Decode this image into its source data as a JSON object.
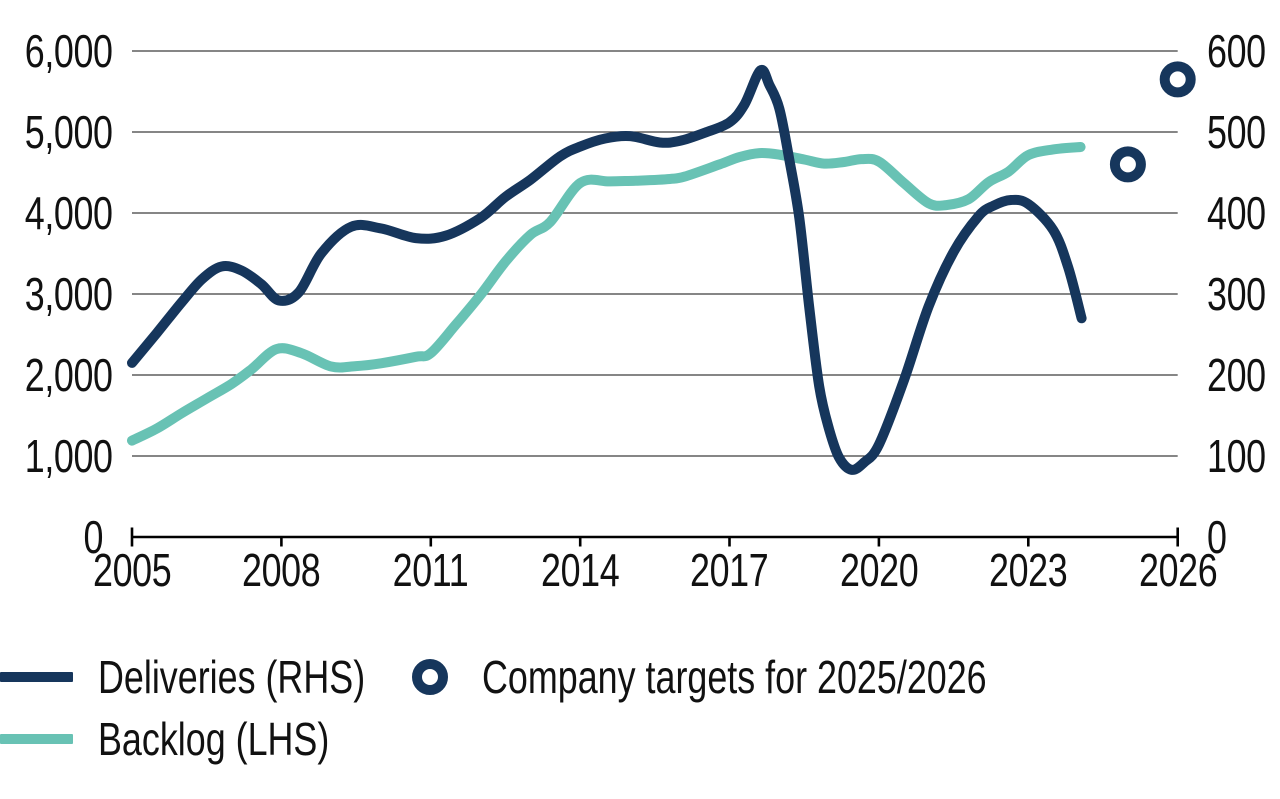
{
  "background": "#ffffff",
  "colors": {
    "deliveries": "#16365c",
    "backlog": "#68c2b4",
    "gridline": "#3f3f3f",
    "axis": "#000000",
    "text": "#111111"
  },
  "chart_data": {
    "type": "line",
    "x_axis": {
      "range": [
        2005,
        2026
      ],
      "ticks": [
        {
          "label": "2005",
          "value": 2005
        },
        {
          "label": "2008",
          "value": 2008
        },
        {
          "label": "2011",
          "value": 2011
        },
        {
          "label": "2014",
          "value": 2014
        },
        {
          "label": "2017",
          "value": 2017
        },
        {
          "label": "2020",
          "value": 2020
        },
        {
          "label": "2023",
          "value": 2023
        },
        {
          "label": "2026",
          "value": 2026
        }
      ]
    },
    "y_axis_left": {
      "range": [
        0,
        6000
      ],
      "ticks": [
        {
          "label": "6,000",
          "value": 6000
        },
        {
          "label": "5,000",
          "value": 5000
        },
        {
          "label": "4,000",
          "value": 4000
        },
        {
          "label": "3,000",
          "value": 3000
        },
        {
          "label": "2,000",
          "value": 2000
        },
        {
          "label": "1,000",
          "value": 1000
        },
        {
          "label": "0",
          "value": 0
        }
      ]
    },
    "y_axis_right": {
      "range": [
        0,
        600
      ],
      "ticks": [
        {
          "label": "600",
          "value": 600
        },
        {
          "label": "500",
          "value": 500
        },
        {
          "label": "400",
          "value": 400
        },
        {
          "label": "300",
          "value": 300
        },
        {
          "label": "200",
          "value": 200
        },
        {
          "label": "100",
          "value": 100
        },
        {
          "label": "0",
          "value": 0
        }
      ]
    },
    "grid": true,
    "legend_position": "bottom-left",
    "series": [
      {
        "name": "Deliveries (RHS)",
        "axis": "right",
        "color": "#16365c",
        "points": [
          [
            2005,
            215
          ],
          [
            2005.5,
            252
          ],
          [
            2006,
            290
          ],
          [
            2006.4,
            318
          ],
          [
            2006.8,
            334
          ],
          [
            2007.2,
            329
          ],
          [
            2007.6,
            312
          ],
          [
            2007.95,
            292
          ],
          [
            2008.35,
            302
          ],
          [
            2008.8,
            350
          ],
          [
            2009.4,
            383
          ],
          [
            2010,
            381
          ],
          [
            2010.7,
            369
          ],
          [
            2011.3,
            372
          ],
          [
            2012,
            394
          ],
          [
            2012.5,
            420
          ],
          [
            2013,
            441
          ],
          [
            2013.6,
            470
          ],
          [
            2014,
            482
          ],
          [
            2014.5,
            492
          ],
          [
            2015,
            495
          ],
          [
            2015.6,
            487
          ],
          [
            2016,
            489
          ],
          [
            2016.5,
            499
          ],
          [
            2017,
            512
          ],
          [
            2017.3,
            534
          ],
          [
            2017.62,
            576
          ],
          [
            2017.8,
            558
          ],
          [
            2018,
            529
          ],
          [
            2018.2,
            466
          ],
          [
            2018.4,
            394
          ],
          [
            2018.6,
            284
          ],
          [
            2018.8,
            186
          ],
          [
            2019,
            133
          ],
          [
            2019.2,
            98
          ],
          [
            2019.45,
            83
          ],
          [
            2019.7,
            92
          ],
          [
            2020,
            114
          ],
          [
            2020.5,
            193
          ],
          [
            2021,
            285
          ],
          [
            2021.5,
            352
          ],
          [
            2022,
            396
          ],
          [
            2022.3,
            409
          ],
          [
            2022.65,
            416
          ],
          [
            2023,
            411
          ],
          [
            2023.5,
            379
          ],
          [
            2023.8,
            333
          ],
          [
            2024.07,
            270
          ]
        ]
      },
      {
        "name": "Backlog (LHS)",
        "axis": "left",
        "color": "#68c2b4",
        "points": [
          [
            2005,
            1190
          ],
          [
            2005.5,
            1340
          ],
          [
            2006,
            1530
          ],
          [
            2006.5,
            1710
          ],
          [
            2007,
            1890
          ],
          [
            2007.4,
            2070
          ],
          [
            2007.9,
            2320
          ],
          [
            2008.4,
            2270
          ],
          [
            2009,
            2105
          ],
          [
            2009.5,
            2110
          ],
          [
            2010,
            2145
          ],
          [
            2010.7,
            2225
          ],
          [
            2011,
            2270
          ],
          [
            2011.5,
            2620
          ],
          [
            2012,
            2990
          ],
          [
            2012.5,
            3400
          ],
          [
            2013,
            3730
          ],
          [
            2013.4,
            3890
          ],
          [
            2014,
            4370
          ],
          [
            2014.6,
            4390
          ],
          [
            2015.2,
            4400
          ],
          [
            2015.8,
            4420
          ],
          [
            2016.1,
            4450
          ],
          [
            2016.8,
            4600
          ],
          [
            2017.2,
            4690
          ],
          [
            2017.6,
            4740
          ],
          [
            2018,
            4720
          ],
          [
            2018.5,
            4660
          ],
          [
            2018.9,
            4610
          ],
          [
            2019.3,
            4630
          ],
          [
            2019.65,
            4665
          ],
          [
            2020,
            4635
          ],
          [
            2020.5,
            4370
          ],
          [
            2021,
            4120
          ],
          [
            2021.35,
            4098
          ],
          [
            2021.8,
            4170
          ],
          [
            2022.2,
            4380
          ],
          [
            2022.6,
            4510
          ],
          [
            2023,
            4715
          ],
          [
            2023.5,
            4785
          ],
          [
            2024.05,
            4815
          ]
        ]
      }
    ],
    "markers": {
      "name": "Company targets for 2025/2026",
      "axis": "right",
      "color": "#16365c",
      "points": [
        [
          2025,
          460
        ],
        [
          2026,
          565
        ]
      ]
    }
  }
}
